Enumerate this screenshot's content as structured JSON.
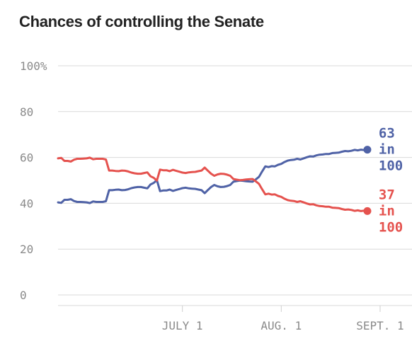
{
  "chart_data": {
    "type": "line",
    "title": "Chances of controlling the Senate",
    "xlabel": "",
    "ylabel": "",
    "ylim": [
      0,
      100
    ],
    "xlim": [
      "2014-05-23",
      "2014-09-11"
    ],
    "y_ticks": [
      {
        "value": 0,
        "label": "0"
      },
      {
        "value": 20,
        "label": "20"
      },
      {
        "value": 40,
        "label": "40"
      },
      {
        "value": 60,
        "label": "60"
      },
      {
        "value": 80,
        "label": "80"
      },
      {
        "value": 100,
        "label": "100%"
      }
    ],
    "x_ticks": [
      {
        "value": "2014-07-01",
        "label": "JULY 1"
      },
      {
        "value": "2014-08-01",
        "label": "AUG. 1"
      },
      {
        "value": "2014-09-01",
        "label": "SEPT. 1"
      }
    ],
    "grid": true,
    "legend": "none",
    "series": [
      {
        "color": "#4f62a6",
        "end_label": [
          "63",
          "in",
          "100"
        ],
        "x": [
          "2014-05-23",
          "2014-05-24",
          "2014-05-25",
          "2014-05-26",
          "2014-05-27",
          "2014-05-28",
          "2014-05-29",
          "2014-05-30",
          "2014-05-31",
          "2014-06-01",
          "2014-06-02",
          "2014-06-03",
          "2014-06-04",
          "2014-06-05",
          "2014-06-06",
          "2014-06-07",
          "2014-06-08",
          "2014-06-09",
          "2014-06-10",
          "2014-06-11",
          "2014-06-12",
          "2014-06-13",
          "2014-06-14",
          "2014-06-15",
          "2014-06-16",
          "2014-06-17",
          "2014-06-18",
          "2014-06-19",
          "2014-06-20",
          "2014-06-21",
          "2014-06-22",
          "2014-06-23",
          "2014-06-24",
          "2014-06-25",
          "2014-06-26",
          "2014-06-27",
          "2014-06-28",
          "2014-06-29",
          "2014-06-30",
          "2014-07-01",
          "2014-07-02",
          "2014-07-03",
          "2014-07-04",
          "2014-07-05",
          "2014-07-06",
          "2014-07-07",
          "2014-07-08",
          "2014-07-09",
          "2014-07-10",
          "2014-07-11",
          "2014-07-12",
          "2014-07-13",
          "2014-07-14",
          "2014-07-15",
          "2014-07-16",
          "2014-07-17",
          "2014-07-18",
          "2014-07-19",
          "2014-07-20",
          "2014-07-21",
          "2014-07-22",
          "2014-07-23",
          "2014-07-24",
          "2014-07-25",
          "2014-07-26",
          "2014-07-27",
          "2014-07-28",
          "2014-07-29",
          "2014-07-30",
          "2014-07-31",
          "2014-08-01",
          "2014-08-02",
          "2014-08-03",
          "2014-08-04",
          "2014-08-05",
          "2014-08-06",
          "2014-08-07",
          "2014-08-08",
          "2014-08-09",
          "2014-08-10",
          "2014-08-11",
          "2014-08-12",
          "2014-08-13",
          "2014-08-14",
          "2014-08-15",
          "2014-08-16",
          "2014-08-17",
          "2014-08-18",
          "2014-08-19",
          "2014-08-20",
          "2014-08-21",
          "2014-08-22",
          "2014-08-23",
          "2014-08-24",
          "2014-08-25",
          "2014-08-26",
          "2014-08-27",
          "2014-08-28"
        ],
        "values": [
          40.4,
          40.2,
          41.5,
          41.5,
          41.8,
          41.0,
          40.6,
          40.6,
          40.5,
          40.4,
          40.1,
          40.8,
          40.6,
          40.6,
          40.6,
          40.9,
          45.7,
          45.7,
          45.9,
          46.0,
          45.7,
          45.8,
          46.1,
          46.6,
          46.9,
          47.1,
          47.1,
          46.8,
          46.5,
          48.2,
          48.9,
          50.1,
          45.3,
          45.6,
          45.6,
          46.0,
          45.4,
          45.8,
          46.2,
          46.6,
          46.8,
          46.5,
          46.4,
          46.3,
          46.0,
          45.7,
          44.4,
          45.8,
          47.1,
          48.0,
          47.4,
          47.1,
          47.2,
          47.5,
          48.0,
          49.4,
          49.7,
          49.9,
          49.8,
          49.6,
          49.5,
          49.4,
          50.4,
          51.5,
          53.9,
          56.1,
          55.8,
          56.2,
          56.1,
          56.8,
          57.2,
          58.0,
          58.6,
          58.9,
          59.0,
          59.4,
          59.1,
          59.6,
          60.1,
          60.5,
          60.4,
          60.9,
          61.2,
          61.3,
          61.5,
          61.5,
          61.9,
          62.0,
          62.1,
          62.5,
          62.8,
          62.7,
          62.9,
          63.3,
          63.1,
          63.4,
          63.2,
          63.4
        ]
      },
      {
        "color": "#e5524e",
        "end_label": [
          "37",
          "in",
          "100"
        ],
        "x": [
          "2014-05-23",
          "2014-05-24",
          "2014-05-25",
          "2014-05-26",
          "2014-05-27",
          "2014-05-28",
          "2014-05-29",
          "2014-05-30",
          "2014-05-31",
          "2014-06-01",
          "2014-06-02",
          "2014-06-03",
          "2014-06-04",
          "2014-06-05",
          "2014-06-06",
          "2014-06-07",
          "2014-06-08",
          "2014-06-09",
          "2014-06-10",
          "2014-06-11",
          "2014-06-12",
          "2014-06-13",
          "2014-06-14",
          "2014-06-15",
          "2014-06-16",
          "2014-06-17",
          "2014-06-18",
          "2014-06-19",
          "2014-06-20",
          "2014-06-21",
          "2014-06-22",
          "2014-06-23",
          "2014-06-24",
          "2014-06-25",
          "2014-06-26",
          "2014-06-27",
          "2014-06-28",
          "2014-06-29",
          "2014-06-30",
          "2014-07-01",
          "2014-07-02",
          "2014-07-03",
          "2014-07-04",
          "2014-07-05",
          "2014-07-06",
          "2014-07-07",
          "2014-07-08",
          "2014-07-09",
          "2014-07-10",
          "2014-07-11",
          "2014-07-12",
          "2014-07-13",
          "2014-07-14",
          "2014-07-15",
          "2014-07-16",
          "2014-07-17",
          "2014-07-18",
          "2014-07-19",
          "2014-07-20",
          "2014-07-21",
          "2014-07-22",
          "2014-07-23",
          "2014-07-24",
          "2014-07-25",
          "2014-07-26",
          "2014-07-27",
          "2014-07-28",
          "2014-07-29",
          "2014-07-30",
          "2014-07-31",
          "2014-08-01",
          "2014-08-02",
          "2014-08-03",
          "2014-08-04",
          "2014-08-05",
          "2014-08-06",
          "2014-08-07",
          "2014-08-08",
          "2014-08-09",
          "2014-08-10",
          "2014-08-11",
          "2014-08-12",
          "2014-08-13",
          "2014-08-14",
          "2014-08-15",
          "2014-08-16",
          "2014-08-17",
          "2014-08-18",
          "2014-08-19",
          "2014-08-20",
          "2014-08-21",
          "2014-08-22",
          "2014-08-23",
          "2014-08-24",
          "2014-08-25",
          "2014-08-26",
          "2014-08-27",
          "2014-08-28"
        ],
        "values": [
          59.6,
          59.8,
          58.5,
          58.5,
          58.2,
          59.0,
          59.4,
          59.4,
          59.5,
          59.6,
          59.9,
          59.2,
          59.4,
          59.4,
          59.4,
          59.1,
          54.3,
          54.3,
          54.1,
          54.0,
          54.3,
          54.2,
          53.9,
          53.4,
          53.1,
          52.9,
          52.9,
          53.2,
          53.5,
          51.8,
          51.1,
          49.9,
          54.7,
          54.4,
          54.4,
          54.0,
          54.6,
          54.2,
          53.8,
          53.4,
          53.2,
          53.5,
          53.6,
          53.7,
          54.0,
          54.3,
          55.6,
          54.2,
          52.9,
          52.0,
          52.6,
          52.9,
          52.8,
          52.5,
          52.0,
          50.6,
          50.3,
          50.1,
          50.2,
          50.4,
          50.5,
          50.6,
          49.6,
          48.5,
          46.1,
          43.9,
          44.2,
          43.8,
          43.9,
          43.2,
          42.8,
          42.0,
          41.4,
          41.1,
          41.0,
          40.6,
          40.9,
          40.4,
          39.9,
          39.5,
          39.6,
          39.1,
          38.8,
          38.7,
          38.5,
          38.5,
          38.1,
          38.0,
          37.9,
          37.5,
          37.2,
          37.3,
          37.1,
          36.7,
          36.9,
          36.6,
          36.8,
          36.6
        ]
      }
    ]
  }
}
